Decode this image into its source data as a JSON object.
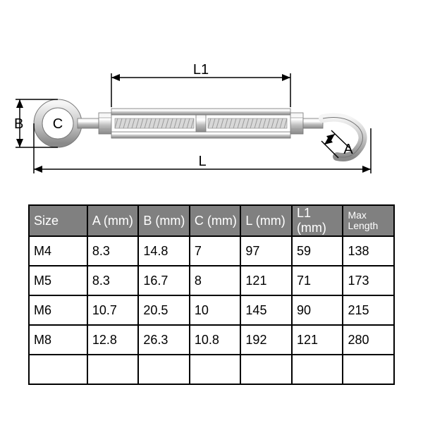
{
  "diagram": {
    "type": "technical-drawing",
    "object": "turnbuckle-eye-hook",
    "labels": {
      "A": "A",
      "B": "B",
      "C": "C",
      "L": "L",
      "L1": "L1"
    },
    "metal_light": "#e8e8e8",
    "metal_mid": "#b8b8b8",
    "metal_dark": "#8a8a8a",
    "metal_shine": "#ffffff",
    "dim_color": "#000000",
    "label_fontsize": 20
  },
  "table": {
    "type": "table",
    "header_bg": "#808080",
    "header_fg": "#ffffff",
    "cell_fg": "#000000",
    "border_color": "#000000",
    "columns": [
      "Size",
      "A (mm)",
      "B (mm)",
      "C (mm)",
      "L (mm)",
      "L1 (mm)",
      "Max Length"
    ],
    "rows": [
      [
        "M4",
        "8.3",
        "14.8",
        "7",
        "97",
        "59",
        "138"
      ],
      [
        "M5",
        "8.3",
        "16.7",
        "8",
        "121",
        "71",
        "173"
      ],
      [
        "M6",
        "10.7",
        "20.5",
        "10",
        "145",
        "90",
        "215"
      ],
      [
        "M8",
        "12.8",
        "26.3",
        "10.8",
        "192",
        "121",
        "280"
      ],
      [
        "",
        "",
        "",
        "",
        "",
        "",
        ""
      ]
    ],
    "font_size": 18
  }
}
